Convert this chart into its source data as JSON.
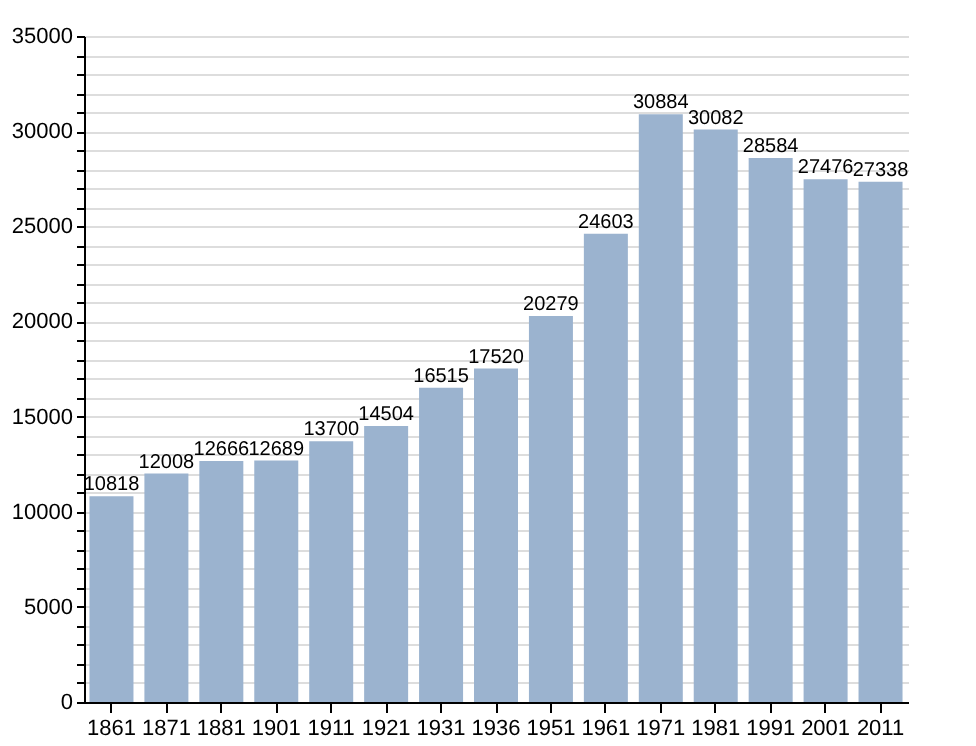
{
  "chart_data": {
    "type": "bar",
    "categories": [
      "1861",
      "1871",
      "1881",
      "1901",
      "1911",
      "1921",
      "1931",
      "1936",
      "1951",
      "1961",
      "1971",
      "1981",
      "1991",
      "2001",
      "2011"
    ],
    "values": [
      10818,
      12008,
      12666,
      12689,
      13700,
      14504,
      16515,
      17520,
      20279,
      24603,
      30884,
      30082,
      28584,
      27476,
      27338
    ],
    "color": "#9bb3cf",
    "data_labels": true,
    "grid": "y",
    "ylim": [
      0,
      35000
    ],
    "yticks": [
      0,
      {
        "value": 1000,
        "label": null
      },
      {
        "value": 2000,
        "label": null
      },
      {
        "value": 3000,
        "label": null
      },
      {
        "value": 4000,
        "label": null
      },
      5000,
      {
        "value": 6000,
        "label": null
      },
      {
        "value": 7000,
        "label": null
      },
      {
        "value": 8000,
        "label": null
      },
      {
        "value": 9000,
        "label": null
      },
      10000,
      {
        "value": 11000,
        "label": null
      },
      {
        "value": 12000,
        "label": null
      },
      {
        "value": 13000,
        "label": null
      },
      {
        "value": 14000,
        "label": null
      },
      15000,
      {
        "value": 16000,
        "label": null
      },
      {
        "value": 17000,
        "label": null
      },
      {
        "value": 18000,
        "label": null
      },
      {
        "value": 19000,
        "label": null
      },
      20000,
      {
        "value": 21000,
        "label": null
      },
      {
        "value": 22000,
        "label": null
      },
      {
        "value": 23000,
        "label": null
      },
      {
        "value": 24000,
        "label": null
      },
      25000,
      {
        "value": 26000,
        "label": null
      },
      {
        "value": 27000,
        "label": null
      },
      {
        "value": 28000,
        "label": null
      },
      {
        "value": 29000,
        "label": null
      },
      30000,
      {
        "value": 31000,
        "label": null
      },
      {
        "value": 32000,
        "label": null
      },
      {
        "value": 33000,
        "label": null
      },
      {
        "value": 34000,
        "label": null
      },
      35000
    ]
  }
}
